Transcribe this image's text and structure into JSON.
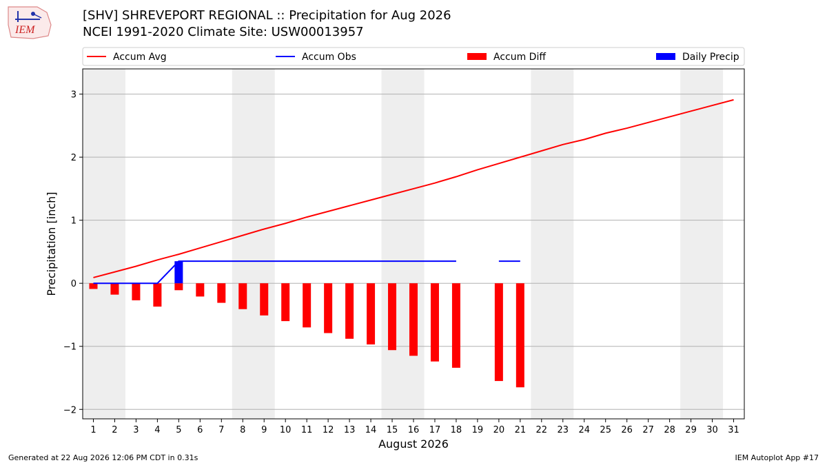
{
  "header": {
    "title_line1": "[SHV] SHREVEPORT REGIONAL :: Precipitation for Aug 2026",
    "title_line2": "NCEI 1991-2020 Climate Site: USW00013957",
    "logo_text": "IEM"
  },
  "footer": {
    "generated": "Generated at 22 Aug 2026 12:06 PM CDT in 0.31s",
    "app": "IEM Autoplot App #17"
  },
  "colors": {
    "accum_avg": "#ff0000",
    "accum_obs": "#0000ff",
    "accum_diff": "#ff0000",
    "daily_precip": "#0000ff",
    "weekend_shade": "#eeeeee",
    "grid": "#b0b0b0"
  },
  "chart_data": {
    "type": "line",
    "xlabel": "August 2026",
    "ylabel": "Precipitation [inch]",
    "xlim": [
      0.5,
      31.5
    ],
    "ylim": [
      -2.15,
      3.4
    ],
    "yticks": [
      -2,
      -1,
      0,
      1,
      2,
      3
    ],
    "ytick_labels": [
      "−2",
      "−1",
      "0",
      "1",
      "2",
      "3"
    ],
    "x_tick_labels": [
      "1",
      "2",
      "3",
      "4",
      "5",
      "6",
      "7",
      "8",
      "9",
      "10",
      "11",
      "12",
      "13",
      "14",
      "15",
      "16",
      "17",
      "18",
      "19",
      "20",
      "21",
      "22",
      "23",
      "24",
      "25",
      "26",
      "27",
      "28",
      "29",
      "30",
      "31"
    ],
    "grid": "horizontal",
    "legend_position": "top",
    "weekend_spans": [
      [
        0.5,
        2.5
      ],
      [
        7.5,
        9.5
      ],
      [
        14.5,
        16.5
      ],
      [
        21.5,
        23.5
      ],
      [
        28.5,
        30.5
      ]
    ],
    "legend": [
      {
        "label": "Accum Avg",
        "kind": "line",
        "color": "#ff0000"
      },
      {
        "label": "Accum Obs",
        "kind": "line",
        "color": "#0000ff"
      },
      {
        "label": "Accum Diff",
        "kind": "bar",
        "color": "#ff0000"
      },
      {
        "label": "Daily Precip",
        "kind": "bar",
        "color": "#0000ff"
      }
    ],
    "series": [
      {
        "name": "Accum Avg",
        "type": "line",
        "x": [
          1,
          2,
          3,
          4,
          5,
          6,
          7,
          8,
          9,
          10,
          11,
          12,
          13,
          14,
          15,
          16,
          17,
          18,
          19,
          20,
          21,
          22,
          23,
          24,
          25,
          26,
          27,
          28,
          29,
          30,
          31
        ],
        "values": [
          0.09,
          0.18,
          0.27,
          0.37,
          0.46,
          0.56,
          0.66,
          0.76,
          0.86,
          0.95,
          1.05,
          1.14,
          1.23,
          1.32,
          1.41,
          1.5,
          1.59,
          1.69,
          1.8,
          1.9,
          2.0,
          2.1,
          2.2,
          2.28,
          2.38,
          2.46,
          2.55,
          2.64,
          2.73,
          2.82,
          2.91
        ]
      },
      {
        "name": "Accum Obs",
        "type": "line",
        "segments": [
          {
            "x": [
              1,
              2,
              3,
              4,
              5,
              6,
              7,
              8,
              9,
              10,
              11,
              12,
              13,
              14,
              15,
              16,
              17,
              18
            ],
            "values": [
              0,
              0,
              0,
              0,
              0.35,
              0.35,
              0.35,
              0.35,
              0.35,
              0.35,
              0.35,
              0.35,
              0.35,
              0.35,
              0.35,
              0.35,
              0.35,
              0.35
            ]
          },
          {
            "x": [
              20,
              21
            ],
            "values": [
              0.35,
              0.35
            ]
          }
        ]
      },
      {
        "name": "Accum Diff",
        "type": "bar",
        "x": [
          1,
          2,
          3,
          4,
          5,
          6,
          7,
          8,
          9,
          10,
          11,
          12,
          13,
          14,
          15,
          16,
          17,
          18,
          20,
          21
        ],
        "values": [
          -0.09,
          -0.18,
          -0.27,
          -0.37,
          -0.11,
          -0.21,
          -0.31,
          -0.41,
          -0.51,
          -0.6,
          -0.7,
          -0.79,
          -0.88,
          -0.97,
          -1.06,
          -1.15,
          -1.24,
          -1.34,
          -1.55,
          -1.65
        ]
      },
      {
        "name": "Daily Precip",
        "type": "bar",
        "x": [
          5
        ],
        "values": [
          0.35
        ]
      }
    ]
  }
}
